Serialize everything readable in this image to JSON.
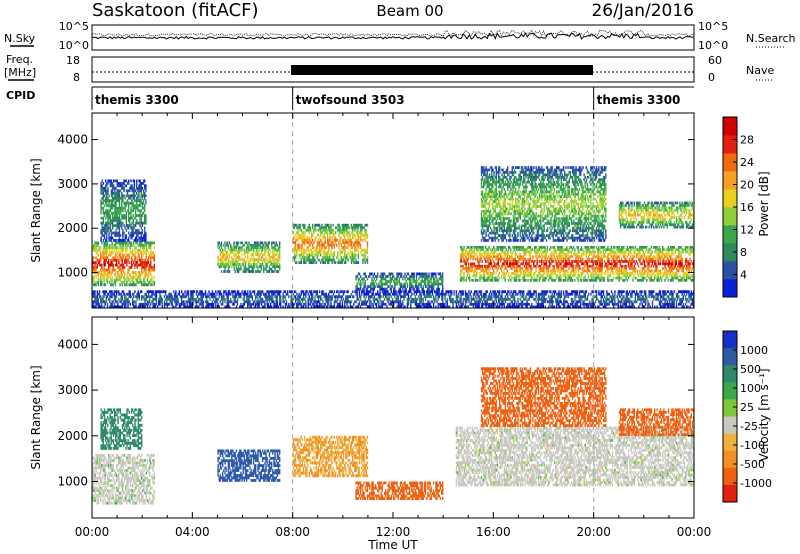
{
  "header": {
    "station": "Saskatoon (fitACF)",
    "beam": "Beam 00",
    "date": "26/Jan/2016"
  },
  "strips": {
    "nsky_label": "N.Sky",
    "nsky_ticks": [
      "10^5",
      "10^0"
    ],
    "nsearch_label": "N.Search",
    "nsearch_ticks": [
      "10^5",
      "10^0"
    ],
    "freq_label_1": "Freq.",
    "freq_label_2": "[MHz]",
    "freq_ticks": [
      "18",
      "8"
    ],
    "nave_label": "Nave",
    "nave_ticks": [
      "60",
      "0"
    ],
    "cpid_label": "CPID"
  },
  "cpid_segments": [
    {
      "name": "themis 3300",
      "start": 0,
      "end": 8
    },
    {
      "name": "twofsound 3503",
      "start": 8,
      "end": 20
    },
    {
      "name": "themis 3300",
      "start": 20,
      "end": 24
    }
  ],
  "colorbars": {
    "power": {
      "label": "Power [dB]",
      "ticks": [
        "28",
        "24",
        "20",
        "16",
        "12",
        "8",
        "4"
      ],
      "colors": [
        "#0a1fd8",
        "#2c4fa8",
        "#2e8a5a",
        "#3aa84a",
        "#8fcf3a",
        "#e8d020",
        "#f5a020",
        "#f06a10",
        "#e02010",
        "#d00000"
      ]
    },
    "velocity": {
      "label": "Velocity [m s⁻¹]",
      "ticks": [
        "1000",
        "500",
        "100",
        "25",
        "-25",
        "-100",
        "-500",
        "-1000"
      ],
      "colors": [
        "#1a2fc8",
        "#2e5aa8",
        "#2f8a6a",
        "#3aaa48",
        "#7cc83a",
        "#c8c8c0",
        "#f0b040",
        "#f09020",
        "#f06010",
        "#e02010"
      ]
    }
  },
  "chart_data": [
    {
      "type": "heatmap",
      "title": "Saskatoon (fitACF)",
      "subtitle": "Beam 00",
      "date": "26/Jan/2016",
      "xlabel": "Time UT",
      "ylabel": "Slant Range [km]",
      "ylim": [
        200,
        4600
      ],
      "xlim": [
        "00:00",
        "24:00"
      ],
      "x_ticks": [
        "00:00",
        "04:00",
        "08:00",
        "12:00",
        "16:00",
        "20:00",
        "00:00"
      ],
      "y_ticks": [
        "1000",
        "2000",
        "3000",
        "4000"
      ],
      "parameter": "Power [dB]",
      "colorbar_ticks": [
        "28",
        "24",
        "20",
        "16",
        "12",
        "8",
        "4"
      ],
      "features": [
        {
          "t_start": "00:00",
          "t_end": "02:30",
          "range_km": [
            700,
            1700
          ],
          "peak_db": 28
        },
        {
          "t_start": "00:20",
          "t_end": "02:10",
          "range_km": [
            1700,
            3100
          ],
          "peak_db": 12
        },
        {
          "t_start": "05:00",
          "t_end": "07:30",
          "range_km": [
            1000,
            1700
          ],
          "peak_db": 20
        },
        {
          "t_start": "08:00",
          "t_end": "11:00",
          "range_km": [
            1200,
            2100
          ],
          "peak_db": 24
        },
        {
          "t_start": "10:30",
          "t_end": "14:00",
          "range_km": [
            600,
            1000
          ],
          "peak_db": 12
        },
        {
          "t_start": "14:40",
          "t_end": "24:00",
          "range_km": [
            800,
            1600
          ],
          "peak_db": 28
        },
        {
          "t_start": "15:30",
          "t_end": "20:30",
          "range_km": [
            1700,
            3400
          ],
          "peak_db": 16
        },
        {
          "t_start": "21:00",
          "t_end": "24:00",
          "range_km": [
            2000,
            2600
          ],
          "peak_db": 20
        },
        {
          "t_start": "00:00",
          "t_end": "24:00",
          "range_km": [
            200,
            600
          ],
          "peak_db": 8
        }
      ]
    },
    {
      "type": "heatmap",
      "xlabel": "Time UT",
      "ylabel": "Slant Range [km]",
      "ylim": [
        200,
        4600
      ],
      "xlim": [
        "00:00",
        "24:00"
      ],
      "x_ticks": [
        "00:00",
        "04:00",
        "08:00",
        "12:00",
        "16:00",
        "20:00",
        "00:00"
      ],
      "y_ticks": [
        "1000",
        "2000",
        "3000",
        "4000"
      ],
      "parameter": "Velocity [m s⁻¹]",
      "colorbar_ticks": [
        "1000",
        "500",
        "100",
        "25",
        "-25",
        "-100",
        "-500",
        "-1000"
      ],
      "features": [
        {
          "t_start": "00:00",
          "t_end": "02:30",
          "range_km": [
            500,
            1600
          ],
          "velocity": 25,
          "ground_scatter": true
        },
        {
          "t_start": "00:20",
          "t_end": "02:00",
          "range_km": [
            1700,
            2600
          ],
          "velocity": 100
        },
        {
          "t_start": "05:00",
          "t_end": "07:30",
          "range_km": [
            1000,
            1700
          ],
          "velocity": 500
        },
        {
          "t_start": "08:00",
          "t_end": "11:00",
          "range_km": [
            1100,
            2000
          ],
          "velocity": -100
        },
        {
          "t_start": "10:30",
          "t_end": "14:00",
          "range_km": [
            600,
            1000
          ],
          "velocity": -500
        },
        {
          "t_start": "14:30",
          "t_end": "24:00",
          "range_km": [
            900,
            2200
          ],
          "velocity": 0,
          "ground_scatter": true
        },
        {
          "t_start": "15:30",
          "t_end": "20:30",
          "range_km": [
            2200,
            3500
          ],
          "velocity": -500
        },
        {
          "t_start": "21:00",
          "t_end": "24:00",
          "range_km": [
            2000,
            2600
          ],
          "velocity": -500
        }
      ]
    }
  ]
}
